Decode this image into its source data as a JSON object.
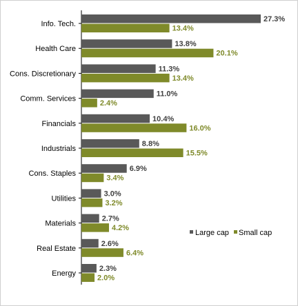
{
  "chart_data": {
    "type": "bar",
    "orientation": "horizontal",
    "categories": [
      "Info. Tech.",
      "Health Care",
      "Cons. Discretionary",
      "Comm. Services",
      "Financials",
      "Industrials",
      "Cons. Staples",
      "Utilities",
      "Materials",
      "Real Estate",
      "Energy"
    ],
    "series": [
      {
        "name": "Large cap",
        "color": "#595959",
        "value_label_color": "#404040",
        "values": [
          27.3,
          13.8,
          11.3,
          11.0,
          10.4,
          8.8,
          6.9,
          3.0,
          2.7,
          2.6,
          2.3
        ],
        "labels": [
          "27.3%",
          "13.8%",
          "11.3%",
          "11.0%",
          "10.4%",
          "8.8%",
          "6.9%",
          "3.0%",
          "2.7%",
          "2.6%",
          "2.3%"
        ]
      },
      {
        "name": "Small cap",
        "color": "#7f8a2a",
        "value_label_color": "#7f8a2a",
        "values": [
          13.4,
          20.1,
          13.4,
          2.4,
          16.0,
          15.5,
          3.4,
          3.2,
          4.2,
          6.4,
          2.0
        ],
        "labels": [
          "13.4%",
          "20.1%",
          "13.4%",
          "2.4%",
          "16.0%",
          "15.5%",
          "3.4%",
          "3.2%",
          "4.2%",
          "6.4%",
          "2.0%"
        ]
      }
    ],
    "title": "",
    "xlabel": "",
    "ylabel": "",
    "xlim": [
      0,
      30
    ],
    "grid": false,
    "legend": {
      "position": "right",
      "entries": [
        "Large cap",
        "Small cap"
      ]
    }
  }
}
